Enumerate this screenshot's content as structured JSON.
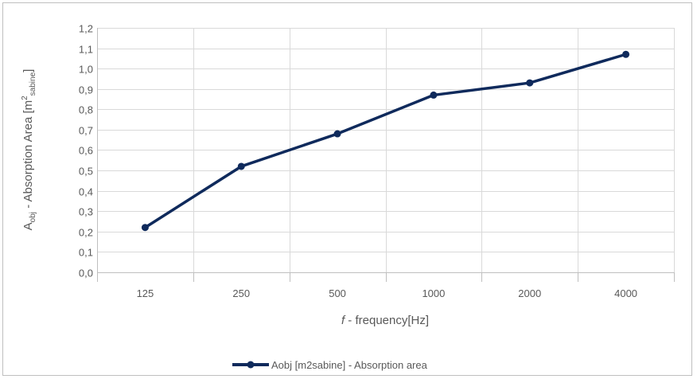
{
  "chart_data": {
    "type": "line",
    "categories": [
      "125",
      "250",
      "500",
      "1000",
      "2000",
      "4000"
    ],
    "series": [
      {
        "name": "Aobj [m2sabine] - Absorption area",
        "values": [
          0.22,
          0.52,
          0.68,
          0.87,
          0.93,
          1.07
        ],
        "color": "#0f2a5c"
      }
    ],
    "ylim": [
      0,
      1.2
    ],
    "ytick_step": 0.1,
    "yticks": [
      "0,0",
      "0,1",
      "0,2",
      "0,3",
      "0,4",
      "0,5",
      "0,6",
      "0,7",
      "0,8",
      "0,9",
      "1,0",
      "1,1",
      "1,2"
    ],
    "xlabel_italic": "f",
    "xlabel_rest": " - frequency[Hz]",
    "ylabel_main": "A",
    "ylabel_sub1": "obj",
    "ylabel_mid": " - Absorption Area [m",
    "ylabel_sup": "2",
    "ylabel_sub2": "sabine",
    "ylabel_end": "]",
    "grid": true,
    "legend_position": "bottom",
    "gridline_color": "#d9d9d9",
    "axis_color": "#bfbfbf"
  }
}
